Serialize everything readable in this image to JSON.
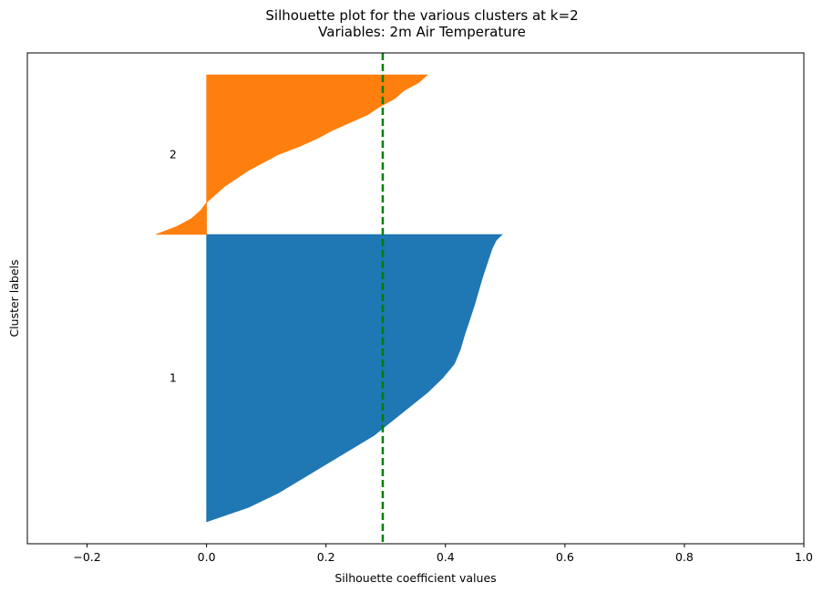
{
  "chart_data": {
    "type": "bar",
    "title": "Silhouette plot for the various clusters at k=2",
    "subtitle": "Variables: 2m Air Temperature",
    "xlabel": "Silhouette coefficient values",
    "ylabel": "Cluster labels",
    "xlim": [
      -0.3,
      1.0
    ],
    "xticks": [
      "−0.2",
      "0.0",
      "0.2",
      "0.4",
      "0.6",
      "0.8",
      "1.0"
    ],
    "xtick_values": [
      -0.2,
      0.0,
      0.2,
      0.4,
      0.6,
      0.8,
      1.0
    ],
    "average_silhouette": 0.295,
    "series": [
      {
        "name": "1",
        "color": "#1f77b4",
        "profile": [
          [
            0,
            0.495
          ],
          [
            0.02,
            0.485
          ],
          [
            0.05,
            0.478
          ],
          [
            0.1,
            0.47
          ],
          [
            0.15,
            0.462
          ],
          [
            0.2,
            0.455
          ],
          [
            0.25,
            0.448
          ],
          [
            0.3,
            0.44
          ],
          [
            0.35,
            0.432
          ],
          [
            0.4,
            0.425
          ],
          [
            0.45,
            0.415
          ],
          [
            0.5,
            0.395
          ],
          [
            0.55,
            0.37
          ],
          [
            0.6,
            0.34
          ],
          [
            0.65,
            0.31
          ],
          [
            0.7,
            0.28
          ],
          [
            0.75,
            0.24
          ],
          [
            0.8,
            0.2
          ],
          [
            0.85,
            0.16
          ],
          [
            0.9,
            0.12
          ],
          [
            0.95,
            0.07
          ],
          [
            1.0,
            0.0
          ]
        ]
      },
      {
        "name": "2",
        "color": "#ff7f0e",
        "profile": [
          [
            0,
            0.37
          ],
          [
            0.05,
            0.355
          ],
          [
            0.1,
            0.33
          ],
          [
            0.15,
            0.315
          ],
          [
            0.2,
            0.29
          ],
          [
            0.25,
            0.27
          ],
          [
            0.3,
            0.24
          ],
          [
            0.35,
            0.21
          ],
          [
            0.4,
            0.185
          ],
          [
            0.45,
            0.155
          ],
          [
            0.5,
            0.12
          ],
          [
            0.55,
            0.095
          ],
          [
            0.6,
            0.07
          ],
          [
            0.65,
            0.05
          ],
          [
            0.7,
            0.03
          ],
          [
            0.75,
            0.015
          ],
          [
            0.8,
            0.0
          ],
          [
            0.85,
            -0.01
          ],
          [
            0.9,
            -0.025
          ],
          [
            0.95,
            -0.05
          ],
          [
            1.0,
            -0.085
          ]
        ]
      }
    ],
    "grid": false,
    "legend": "none"
  }
}
